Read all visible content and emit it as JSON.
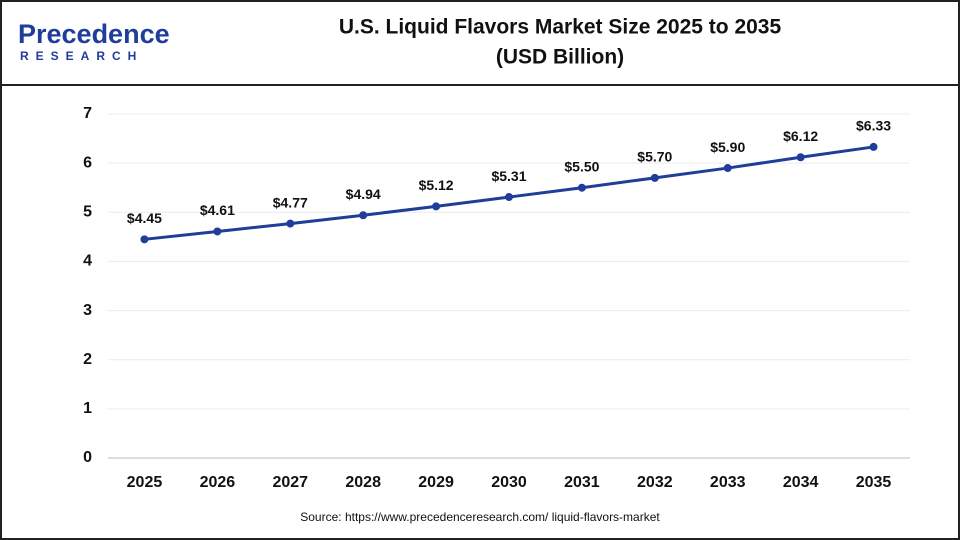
{
  "logo": {
    "name": "Precedence",
    "tagline": "RESEARCH"
  },
  "chart_data": {
    "type": "line",
    "title": "U.S. Liquid Flavors Market Size 2025 to 2035",
    "subtitle": "(USD Billion)",
    "categories": [
      "2025",
      "2026",
      "2027",
      "2028",
      "2029",
      "2030",
      "2031",
      "2032",
      "2033",
      "2034",
      "2035"
    ],
    "series": [
      {
        "name": "Market Size",
        "color": "#1f3d99",
        "values": [
          4.45,
          4.61,
          4.77,
          4.94,
          5.12,
          5.31,
          5.5,
          5.7,
          5.9,
          6.12,
          6.33
        ],
        "value_labels": [
          "$4.45",
          "$4.61",
          "$4.77",
          "$4.94",
          "$5.12",
          "$5.31",
          "$5.50",
          "$5.70",
          "$5.90",
          "$6.12",
          "$6.33"
        ]
      }
    ],
    "ylim": [
      0,
      7
    ],
    "yticks": [
      0,
      1,
      2,
      3,
      4,
      5,
      6,
      7
    ],
    "grid": true,
    "source": "Source: https://www.precedenceresearch.com/ liquid-flavors-market"
  }
}
